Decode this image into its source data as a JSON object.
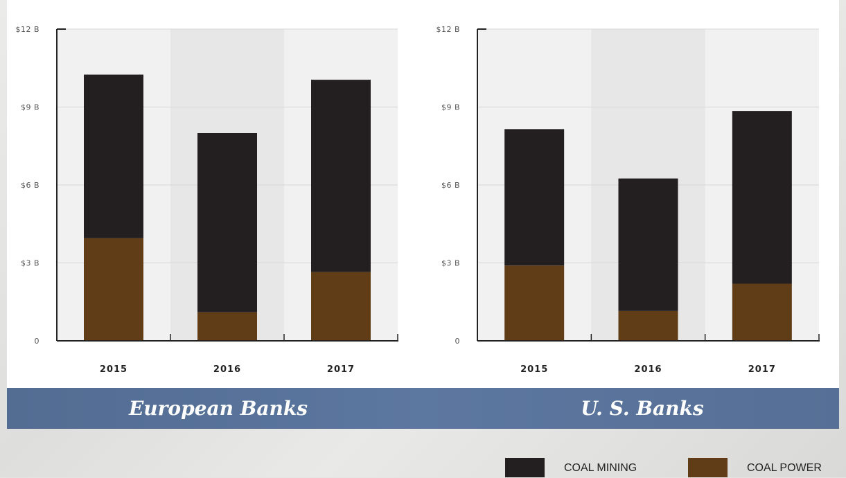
{
  "colors": {
    "coal_mining": "#231f20",
    "coal_power": "#603d16",
    "plot_bg": "#f1f1f1",
    "band_bg": "#e6e7e6",
    "banner": "#5a739b"
  },
  "y_tick_labels": [
    "0",
    "$3 B",
    "$6 B",
    "$9 B",
    "$12 B"
  ],
  "chart_data": [
    {
      "type": "bar",
      "stacked": true,
      "title": "European Banks",
      "categories": [
        "2015",
        "2016",
        "2017"
      ],
      "series": [
        {
          "name": "COAL POWER",
          "values": [
            3.95,
            1.1,
            2.65
          ]
        },
        {
          "name": "COAL MINING",
          "values": [
            6.3,
            6.9,
            7.4
          ]
        }
      ],
      "ylim": [
        0,
        12
      ],
      "yticks": [
        0,
        3,
        6,
        9,
        12
      ],
      "grid": true
    },
    {
      "type": "bar",
      "stacked": true,
      "title": "U. S. Banks",
      "categories": [
        "2015",
        "2016",
        "2017"
      ],
      "series": [
        {
          "name": "COAL POWER",
          "values": [
            2.9,
            1.15,
            2.2
          ]
        },
        {
          "name": "COAL MINING",
          "values": [
            5.25,
            5.1,
            6.65
          ]
        }
      ],
      "ylim": [
        0,
        12
      ],
      "yticks": [
        0,
        3,
        6,
        9,
        12
      ],
      "grid": true
    }
  ],
  "legend": {
    "placement": "bottom-right",
    "items": [
      {
        "label": "COAL MINING",
        "color": "#231f20"
      },
      {
        "label": "COAL POWER",
        "color": "#603d16"
      }
    ]
  }
}
